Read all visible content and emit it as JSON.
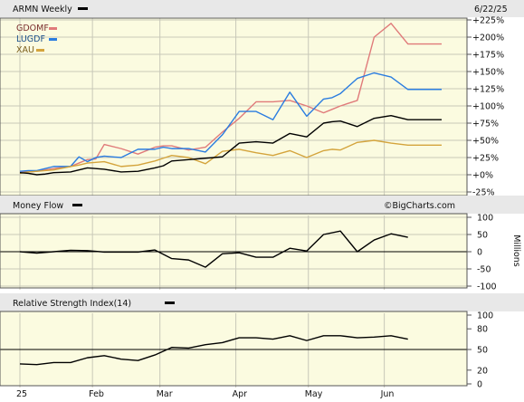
{
  "header": {
    "ticker_label": "ARMN Weekly",
    "date": "6/22/25"
  },
  "legend": [
    {
      "name": "GDOMF",
      "color": "#e07a7a"
    },
    {
      "name": "LUGDF",
      "color": "#2b7de0"
    },
    {
      "name": "XAU",
      "color": "#d4a43c"
    }
  ],
  "watermark": "©BigCharts.com",
  "x_axis": {
    "labels": [
      {
        "label": "25",
        "week": 0
      },
      {
        "label": "Feb",
        "week": 4.3
      },
      {
        "label": "Mar",
        "week": 8.3
      },
      {
        "label": "Apr",
        "week": 12.8
      },
      {
        "label": "May",
        "week": 17.1
      },
      {
        "label": "Jun",
        "week": 21.6
      }
    ]
  },
  "chart_data": [
    {
      "type": "line",
      "title": "ARMN Weekly",
      "y_unit": "percent change",
      "ylim": [
        -25,
        225
      ],
      "yticks": [
        "-25%",
        "+0%",
        "+25%",
        "+50%",
        "+75%",
        "+100%",
        "+125%",
        "+150%",
        "+175%",
        "+200%",
        "+225%"
      ],
      "ytick_values": [
        -25,
        0,
        25,
        50,
        75,
        100,
        125,
        150,
        175,
        200,
        225
      ],
      "x": [
        0,
        0.5,
        1,
        1.5,
        2,
        3,
        3.5,
        4,
        4.5,
        5,
        6,
        7,
        8,
        8.5,
        9,
        10,
        11,
        12,
        13,
        14,
        15,
        16,
        17,
        18,
        18.5,
        19,
        20,
        21,
        22,
        23,
        24,
        25
      ],
      "series": [
        {
          "name": "ARMN",
          "color": "#000000",
          "values": [
            3,
            2,
            0,
            1,
            3,
            4,
            7,
            10,
            9,
            8,
            4,
            5,
            10,
            13,
            20,
            22,
            24,
            26,
            46,
            48,
            46,
            60,
            55,
            75,
            77,
            78,
            70,
            82,
            86,
            80,
            80,
            80
          ]
        },
        {
          "name": "GDOMF",
          "color": "#e07a7a",
          "values": [
            5,
            4,
            5,
            7,
            9,
            12,
            17,
            22,
            23,
            44,
            38,
            30,
            40,
            42,
            42,
            36,
            40,
            62,
            82,
            106,
            106,
            108,
            100,
            90,
            95,
            100,
            108,
            200,
            220,
            190,
            190,
            190
          ]
        },
        {
          "name": "LUGDF",
          "color": "#2b7de0",
          "values": [
            5,
            6,
            6,
            9,
            12,
            12,
            26,
            19,
            25,
            27,
            25,
            37,
            37,
            40,
            38,
            38,
            33,
            58,
            92,
            92,
            80,
            120,
            85,
            110,
            112,
            118,
            140,
            148,
            142,
            124,
            124,
            124
          ]
        },
        {
          "name": "XAU",
          "color": "#d4a43c",
          "values": [
            2,
            4,
            5,
            6,
            7,
            12,
            14,
            17,
            18,
            19,
            12,
            14,
            20,
            24,
            28,
            25,
            16,
            34,
            37,
            32,
            28,
            35,
            25,
            35,
            37,
            36,
            47,
            50,
            46,
            43,
            43,
            43
          ]
        }
      ]
    },
    {
      "type": "line",
      "title": "Money Flow",
      "ylabel": "Millions",
      "ylim": [
        -100,
        100
      ],
      "yticks": [
        "100",
        "50",
        "0",
        "-50",
        "-100"
      ],
      "ytick_values": [
        100,
        50,
        0,
        -50,
        -100
      ],
      "x": [
        0,
        1,
        2,
        3,
        4,
        5,
        6,
        7,
        8,
        9,
        10,
        11,
        12,
        13,
        14,
        15,
        16,
        17,
        18,
        19,
        20,
        21,
        22,
        23
      ],
      "series": [
        {
          "name": "Money Flow",
          "color": "#000000",
          "values": [
            0,
            -4,
            0,
            4,
            3,
            -1,
            -1,
            -1,
            5,
            -20,
            -24,
            -45,
            -6,
            -3,
            -16,
            -16,
            10,
            2,
            50,
            60,
            0,
            34,
            52,
            42
          ]
        }
      ]
    },
    {
      "type": "line",
      "title": "Relative Strength Index(14)",
      "ylim": [
        0,
        100
      ],
      "yticks": [
        "100",
        "80",
        "50",
        "20",
        "0"
      ],
      "ytick_values": [
        100,
        80,
        50,
        20,
        0
      ],
      "reference_lines": [
        50
      ],
      "x": [
        0,
        1,
        2,
        3,
        4,
        5,
        6,
        7,
        8,
        9,
        10,
        11,
        12,
        13,
        14,
        15,
        16,
        17,
        18,
        19,
        20,
        21,
        22,
        23
      ],
      "series": [
        {
          "name": "RSI",
          "color": "#000000",
          "values": [
            29,
            28,
            31,
            31,
            38,
            41,
            36,
            34,
            42,
            53,
            52,
            57,
            60,
            67,
            67,
            65,
            70,
            63,
            70,
            70,
            67,
            68,
            70,
            65
          ]
        }
      ]
    }
  ]
}
